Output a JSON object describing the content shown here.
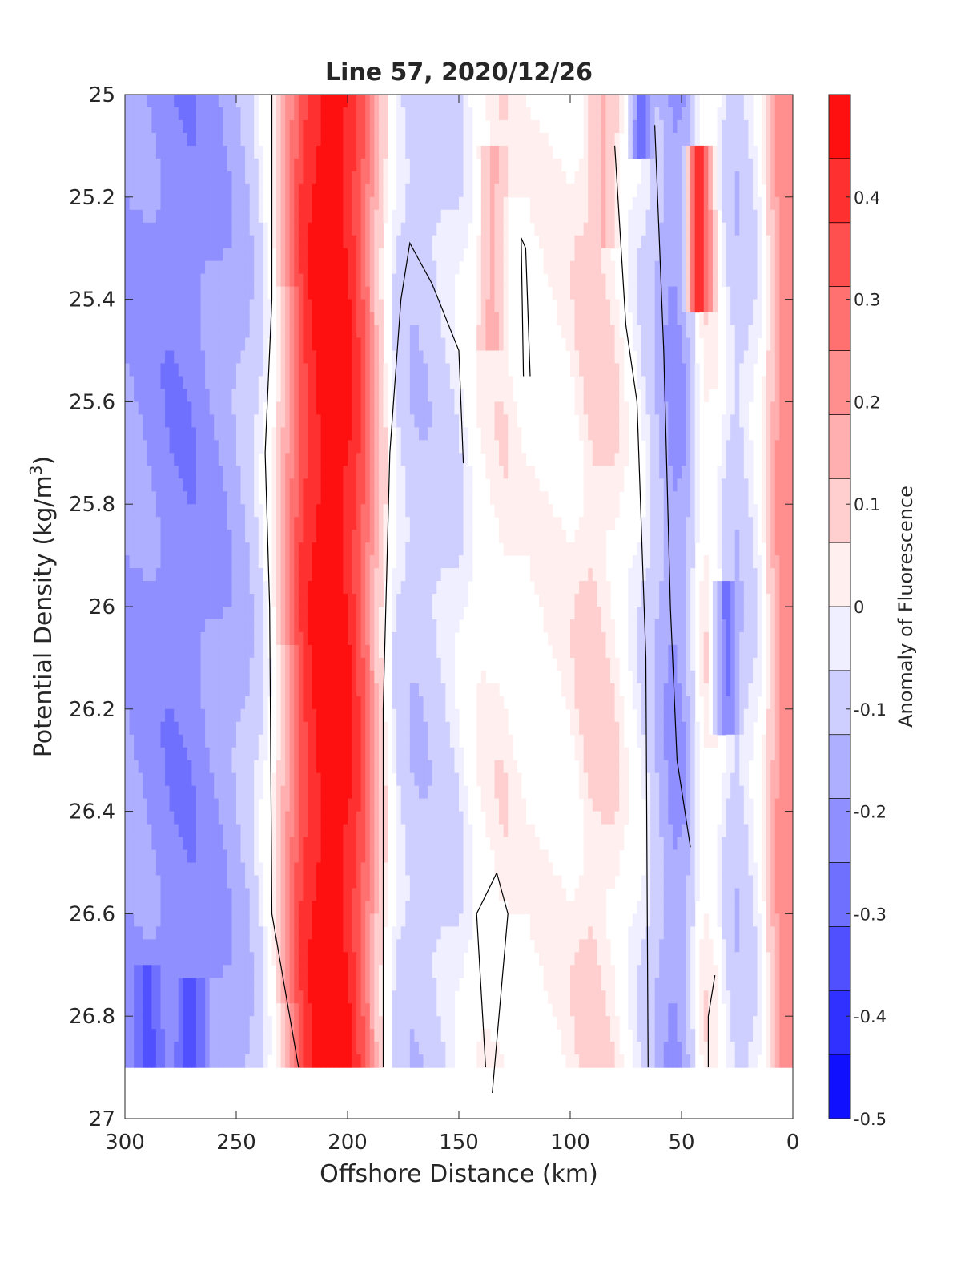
{
  "chart_data": {
    "type": "heatmap",
    "title": "Line 57, 2020/12/26",
    "xlabel": "Offshore Distance (km)",
    "ylabel_main": "Potential Density (kg/m",
    "ylabel_sup": "3",
    "ylabel_close": ")",
    "colorbar_label": "Anomaly of Fluorescence",
    "xlim": [
      300,
      0
    ],
    "ylim": [
      25,
      27
    ],
    "x_reversed": true,
    "y_reversed": true,
    "x_ticks": [
      300,
      250,
      200,
      150,
      100,
      50,
      0
    ],
    "x_tick_labels": [
      "300",
      "250",
      "200",
      "150",
      "100",
      "50",
      "0"
    ],
    "y_ticks": [
      25,
      25.2,
      25.4,
      25.6,
      25.8,
      26,
      26.2,
      26.4,
      26.6,
      26.8,
      27
    ],
    "y_tick_labels": [
      "25",
      "25.2",
      "25.4",
      "25.6",
      "25.8",
      "26",
      "26.2",
      "26.4",
      "26.6",
      "26.8",
      "27"
    ],
    "colorbar_range": [
      -0.5,
      0.5
    ],
    "colorbar_levels": 16,
    "colorbar_ticks": [
      -0.5,
      -0.4,
      -0.3,
      -0.2,
      -0.1,
      0,
      0.1,
      0.2,
      0.3,
      0.4
    ],
    "colorbar_tick_labels": [
      "-0.5",
      "-0.4",
      "-0.3",
      "-0.2",
      "-0.1",
      "0",
      "0.1",
      "0.2",
      "0.3",
      "0.4"
    ],
    "colormap": {
      "negative": "#0000ff",
      "neutral": "#ffffff",
      "positive": "#ff0000"
    },
    "data_extent": {
      "density_min": 25.0,
      "density_max": 26.9
    },
    "profile_anomaly": [
      {
        "x": 300,
        "anomaly": -0.18
      },
      {
        "x": 290,
        "anomaly": -0.2
      },
      {
        "x": 280,
        "anomaly": -0.23
      },
      {
        "x": 270,
        "anomaly": -0.23
      },
      {
        "x": 260,
        "anomaly": -0.19
      },
      {
        "x": 252,
        "anomaly": -0.16
      },
      {
        "x": 245,
        "anomaly": -0.12
      },
      {
        "x": 240,
        "anomaly": -0.07
      },
      {
        "x": 236,
        "anomaly": -0.02
      },
      {
        "x": 232,
        "anomaly": 0.05
      },
      {
        "x": 226,
        "anomaly": 0.22
      },
      {
        "x": 220,
        "anomaly": 0.38
      },
      {
        "x": 212,
        "anomaly": 0.47
      },
      {
        "x": 205,
        "anomaly": 0.49
      },
      {
        "x": 198,
        "anomaly": 0.42
      },
      {
        "x": 192,
        "anomaly": 0.3
      },
      {
        "x": 187,
        "anomaly": 0.14
      },
      {
        "x": 183,
        "anomaly": 0.04
      },
      {
        "x": 178,
        "anomaly": -0.06
      },
      {
        "x": 170,
        "anomaly": -0.11
      },
      {
        "x": 160,
        "anomaly": -0.09
      },
      {
        "x": 150,
        "anomaly": -0.05
      },
      {
        "x": 140,
        "anomaly": 0.02
      },
      {
        "x": 130,
        "anomaly": 0.04
      },
      {
        "x": 120,
        "anomaly": 0.01
      },
      {
        "x": 110,
        "anomaly": 0.02
      },
      {
        "x": 100,
        "anomaly": 0.03
      },
      {
        "x": 90,
        "anomaly": 0.08
      },
      {
        "x": 80,
        "anomaly": 0.05
      },
      {
        "x": 72,
        "anomaly": -0.02
      },
      {
        "x": 66,
        "anomaly": -0.06
      },
      {
        "x": 60,
        "anomaly": -0.13
      },
      {
        "x": 54,
        "anomaly": -0.2
      },
      {
        "x": 49,
        "anomaly": -0.17
      },
      {
        "x": 45,
        "anomaly": -0.08
      },
      {
        "x": 40,
        "anomaly": 0.04
      },
      {
        "x": 35,
        "anomaly": 0.02
      },
      {
        "x": 30,
        "anomaly": -0.06
      },
      {
        "x": 25,
        "anomaly": -0.1
      },
      {
        "x": 20,
        "anomaly": -0.07
      },
      {
        "x": 15,
        "anomaly": -0.02
      },
      {
        "x": 10,
        "anomaly": 0.1
      },
      {
        "x": 5,
        "anomaly": 0.22
      }
    ],
    "annotations": [
      {
        "x": 42,
        "y_top": 25.1,
        "y_bottom": 25.42,
        "anomaly": 0.46
      },
      {
        "x": 68,
        "y_top": 25.0,
        "y_bottom": 25.12,
        "anomaly": -0.3
      },
      {
        "x": 85,
        "y_top": 25.0,
        "y_bottom": 25.3,
        "anomaly": 0.13
      },
      {
        "x": 270,
        "y_top": 26.72,
        "y_bottom": 26.9,
        "anomaly": -0.38
      },
      {
        "x": 290,
        "y_top": 26.7,
        "y_bottom": 26.9,
        "anomaly": -0.36
      },
      {
        "x": 135,
        "y_top": 25.1,
        "y_bottom": 25.5,
        "anomaly": 0.16
      },
      {
        "x": 30,
        "y_top": 25.95,
        "y_bottom": 26.25,
        "anomaly": -0.28
      }
    ],
    "contours": [
      {
        "level": 0,
        "points": [
          [
            234,
            25.0
          ],
          [
            234,
            25.4
          ],
          [
            237,
            25.7
          ],
          [
            235,
            26.0
          ],
          [
            234,
            26.6
          ],
          [
            230,
            26.7
          ],
          [
            222,
            26.9
          ]
        ]
      },
      {
        "level": 0,
        "points": [
          [
            184,
            26.9
          ],
          [
            184,
            26.2
          ],
          [
            181,
            25.7
          ],
          [
            176,
            25.4
          ],
          [
            172,
            25.29
          ],
          [
            162,
            25.37
          ],
          [
            150,
            25.5
          ],
          [
            148,
            25.72
          ]
        ]
      },
      {
        "level": 0,
        "points": [
          [
            62,
            25.06
          ],
          [
            58,
            25.5
          ],
          [
            55,
            26.0
          ],
          [
            52,
            26.3
          ],
          [
            46,
            26.47
          ]
        ]
      },
      {
        "level": 0,
        "points": [
          [
            65,
            26.9
          ],
          [
            66,
            26.1
          ],
          [
            70,
            25.6
          ],
          [
            75,
            25.45
          ],
          [
            80,
            25.1
          ]
        ]
      },
      {
        "level": 0,
        "points": [
          [
            38,
            26.9
          ],
          [
            38,
            26.8
          ],
          [
            35,
            26.72
          ]
        ]
      },
      {
        "level": 0,
        "points": [
          [
            118,
            25.55
          ],
          [
            120,
            25.3
          ],
          [
            122,
            25.28
          ],
          [
            121,
            25.55
          ]
        ]
      },
      {
        "level": 0,
        "points": [
          [
            135,
            26.95
          ],
          [
            128,
            26.6
          ],
          [
            133,
            26.52
          ],
          [
            142,
            26.6
          ],
          [
            138,
            26.9
          ]
        ]
      }
    ]
  }
}
